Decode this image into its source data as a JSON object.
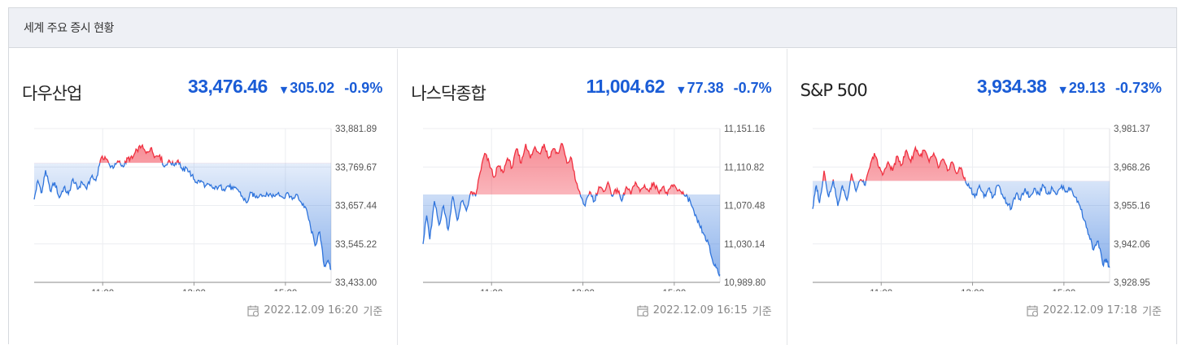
{
  "header": {
    "title": "세계 주요 증시 현황"
  },
  "stamp_suffix": "기준",
  "colors": {
    "up": "#f03040",
    "down": "#2f74dc",
    "accent": "#1a5cd6"
  },
  "chart_data": [
    {
      "type": "area",
      "name": "다우산업",
      "price": "33,476.46",
      "change": "305.02",
      "change_pct": "-0.9%",
      "direction": "down",
      "timestamp": "2022.12.09 16:20",
      "x_ticks": [
        "11:00",
        "13:00",
        "15:00"
      ],
      "y_ticks": [
        "33,881.89",
        "33,769.67",
        "33,657.44",
        "33,545.22",
        "33,433.00"
      ],
      "ylim": [
        33433.0,
        33881.89
      ],
      "baseline": 33781.48,
      "x_range": [
        9.5,
        16.0
      ],
      "x_tick_values": [
        11,
        13,
        15
      ],
      "series_keypoints": [
        [
          9.5,
          33675
        ],
        [
          9.58,
          33730
        ],
        [
          9.67,
          33695
        ],
        [
          9.75,
          33760
        ],
        [
          9.85,
          33700
        ],
        [
          9.95,
          33725
        ],
        [
          10.05,
          33680
        ],
        [
          10.15,
          33710
        ],
        [
          10.25,
          33690
        ],
        [
          10.35,
          33735
        ],
        [
          10.45,
          33705
        ],
        [
          10.55,
          33725
        ],
        [
          10.65,
          33705
        ],
        [
          10.75,
          33740
        ],
        [
          10.85,
          33730
        ],
        [
          10.95,
          33790
        ],
        [
          11.05,
          33800
        ],
        [
          11.15,
          33775
        ],
        [
          11.25,
          33770
        ],
        [
          11.35,
          33785
        ],
        [
          11.45,
          33770
        ],
        [
          11.55,
          33795
        ],
        [
          11.65,
          33795
        ],
        [
          11.75,
          33820
        ],
        [
          11.85,
          33830
        ],
        [
          11.95,
          33810
        ],
        [
          12.05,
          33825
        ],
        [
          12.15,
          33800
        ],
        [
          12.25,
          33805
        ],
        [
          12.35,
          33770
        ],
        [
          12.45,
          33790
        ],
        [
          12.55,
          33775
        ],
        [
          12.65,
          33790
        ],
        [
          12.75,
          33760
        ],
        [
          12.85,
          33765
        ],
        [
          12.95,
          33745
        ],
        [
          13.05,
          33725
        ],
        [
          13.15,
          33730
        ],
        [
          13.25,
          33715
        ],
        [
          13.35,
          33715
        ],
        [
          13.45,
          33705
        ],
        [
          13.55,
          33715
        ],
        [
          13.65,
          33705
        ],
        [
          13.75,
          33715
        ],
        [
          13.85,
          33705
        ],
        [
          13.95,
          33705
        ],
        [
          14.05,
          33685
        ],
        [
          14.15,
          33665
        ],
        [
          14.25,
          33695
        ],
        [
          14.35,
          33680
        ],
        [
          14.45,
          33690
        ],
        [
          14.55,
          33685
        ],
        [
          14.65,
          33690
        ],
        [
          14.75,
          33685
        ],
        [
          14.85,
          33695
        ],
        [
          14.95,
          33680
        ],
        [
          15.05,
          33695
        ],
        [
          15.15,
          33675
        ],
        [
          15.25,
          33690
        ],
        [
          15.35,
          33665
        ],
        [
          15.45,
          33650
        ],
        [
          15.55,
          33595
        ],
        [
          15.65,
          33540
        ],
        [
          15.75,
          33580
        ],
        [
          15.85,
          33480
        ],
        [
          15.92,
          33495
        ],
        [
          16.0,
          33470
        ]
      ]
    },
    {
      "type": "area",
      "name": "나스닥종합",
      "price": "11,004.62",
      "change": "77.38",
      "change_pct": "-0.7%",
      "direction": "down",
      "timestamp": "2022.12.09 16:15",
      "x_ticks": [
        "11:00",
        "13:00",
        "15:00"
      ],
      "y_ticks": [
        "11,151.16",
        "11,110.82",
        "11,070.48",
        "11,030.14",
        "10,989.80"
      ],
      "ylim": [
        10989.8,
        11151.16
      ],
      "baseline": 11082.0,
      "x_range": [
        9.5,
        16.0
      ],
      "x_tick_values": [
        11,
        13,
        15
      ],
      "series_keypoints": [
        [
          9.5,
          11030
        ],
        [
          9.58,
          11060
        ],
        [
          9.65,
          11035
        ],
        [
          9.75,
          11075
        ],
        [
          9.85,
          11050
        ],
        [
          9.95,
          11070
        ],
        [
          10.05,
          11045
        ],
        [
          10.15,
          11080
        ],
        [
          10.25,
          11055
        ],
        [
          10.35,
          11075
        ],
        [
          10.45,
          11065
        ],
        [
          10.55,
          11085
        ],
        [
          10.65,
          11080
        ],
        [
          10.75,
          11105
        ],
        [
          10.85,
          11125
        ],
        [
          10.95,
          11115
        ],
        [
          11.05,
          11100
        ],
        [
          11.15,
          11112
        ],
        [
          11.25,
          11105
        ],
        [
          11.35,
          11120
        ],
        [
          11.45,
          11110
        ],
        [
          11.55,
          11130
        ],
        [
          11.65,
          11115
        ],
        [
          11.75,
          11135
        ],
        [
          11.85,
          11120
        ],
        [
          11.95,
          11132
        ],
        [
          12.05,
          11125
        ],
        [
          12.15,
          11135
        ],
        [
          12.25,
          11120
        ],
        [
          12.35,
          11130
        ],
        [
          12.45,
          11125
        ],
        [
          12.55,
          11135
        ],
        [
          12.65,
          11115
        ],
        [
          12.75,
          11120
        ],
        [
          12.85,
          11095
        ],
        [
          12.95,
          11080
        ],
        [
          13.05,
          11070
        ],
        [
          13.15,
          11085
        ],
        [
          13.25,
          11075
        ],
        [
          13.35,
          11090
        ],
        [
          13.45,
          11085
        ],
        [
          13.55,
          11095
        ],
        [
          13.65,
          11080
        ],
        [
          13.75,
          11088
        ],
        [
          13.85,
          11075
        ],
        [
          13.95,
          11090
        ],
        [
          14.05,
          11082
        ],
        [
          14.15,
          11095
        ],
        [
          14.25,
          11085
        ],
        [
          14.35,
          11092
        ],
        [
          14.45,
          11085
        ],
        [
          14.55,
          11095
        ],
        [
          14.65,
          11085
        ],
        [
          14.75,
          11090
        ],
        [
          14.85,
          11082
        ],
        [
          14.95,
          11092
        ],
        [
          15.05,
          11088
        ],
        [
          15.15,
          11085
        ],
        [
          15.25,
          11080
        ],
        [
          15.35,
          11075
        ],
        [
          15.45,
          11060
        ],
        [
          15.55,
          11050
        ],
        [
          15.65,
          11040
        ],
        [
          15.75,
          11030
        ],
        [
          15.85,
          11010
        ],
        [
          15.93,
          11005
        ],
        [
          16.0,
          10998
        ]
      ]
    },
    {
      "type": "area",
      "name": "S&P 500",
      "price": "3,934.38",
      "change": "29.13",
      "change_pct": "-0.73%",
      "direction": "down",
      "timestamp": "2022.12.09 17:18",
      "x_ticks": [
        "11:00",
        "13:00",
        "15:00"
      ],
      "y_ticks": [
        "3,981.37",
        "3,968.26",
        "3,955.16",
        "3,942.06",
        "3,928.95"
      ],
      "ylim": [
        3928.95,
        3981.37
      ],
      "baseline": 3963.51,
      "x_range": [
        9.5,
        16.0
      ],
      "x_tick_values": [
        11,
        13,
        15
      ],
      "series_keypoints": [
        [
          9.5,
          3954
        ],
        [
          9.58,
          3962
        ],
        [
          9.65,
          3956
        ],
        [
          9.75,
          3967
        ],
        [
          9.85,
          3958
        ],
        [
          9.95,
          3964
        ],
        [
          10.05,
          3955
        ],
        [
          10.15,
          3962
        ],
        [
          10.25,
          3957
        ],
        [
          10.35,
          3966
        ],
        [
          10.45,
          3960
        ],
        [
          10.55,
          3964
        ],
        [
          10.65,
          3962
        ],
        [
          10.75,
          3968
        ],
        [
          10.85,
          3973
        ],
        [
          10.95,
          3968
        ],
        [
          11.05,
          3966
        ],
        [
          11.15,
          3970
        ],
        [
          11.25,
          3967
        ],
        [
          11.35,
          3972
        ],
        [
          11.45,
          3969
        ],
        [
          11.55,
          3974
        ],
        [
          11.65,
          3970
        ],
        [
          11.75,
          3975
        ],
        [
          11.85,
          3972
        ],
        [
          11.95,
          3974
        ],
        [
          12.05,
          3970
        ],
        [
          12.15,
          3973
        ],
        [
          12.25,
          3968
        ],
        [
          12.35,
          3971
        ],
        [
          12.45,
          3967
        ],
        [
          12.55,
          3970
        ],
        [
          12.65,
          3966
        ],
        [
          12.75,
          3968
        ],
        [
          12.85,
          3963
        ],
        [
          12.95,
          3961
        ],
        [
          13.05,
          3958
        ],
        [
          13.15,
          3962
        ],
        [
          13.25,
          3958
        ],
        [
          13.35,
          3961
        ],
        [
          13.45,
          3958
        ],
        [
          13.55,
          3962
        ],
        [
          13.65,
          3959
        ],
        [
          13.75,
          3956
        ],
        [
          13.85,
          3954
        ],
        [
          13.95,
          3959
        ],
        [
          14.05,
          3957
        ],
        [
          14.15,
          3961
        ],
        [
          14.25,
          3958
        ],
        [
          14.35,
          3961
        ],
        [
          14.45,
          3959
        ],
        [
          14.55,
          3962
        ],
        [
          14.65,
          3959
        ],
        [
          14.75,
          3961
        ],
        [
          14.85,
          3959
        ],
        [
          14.95,
          3962
        ],
        [
          15.05,
          3960
        ],
        [
          15.15,
          3961
        ],
        [
          15.25,
          3958
        ],
        [
          15.35,
          3955
        ],
        [
          15.45,
          3950
        ],
        [
          15.55,
          3945
        ],
        [
          15.65,
          3940
        ],
        [
          15.75,
          3943
        ],
        [
          15.85,
          3935
        ],
        [
          15.93,
          3937
        ],
        [
          16.0,
          3934
        ]
      ]
    }
  ]
}
